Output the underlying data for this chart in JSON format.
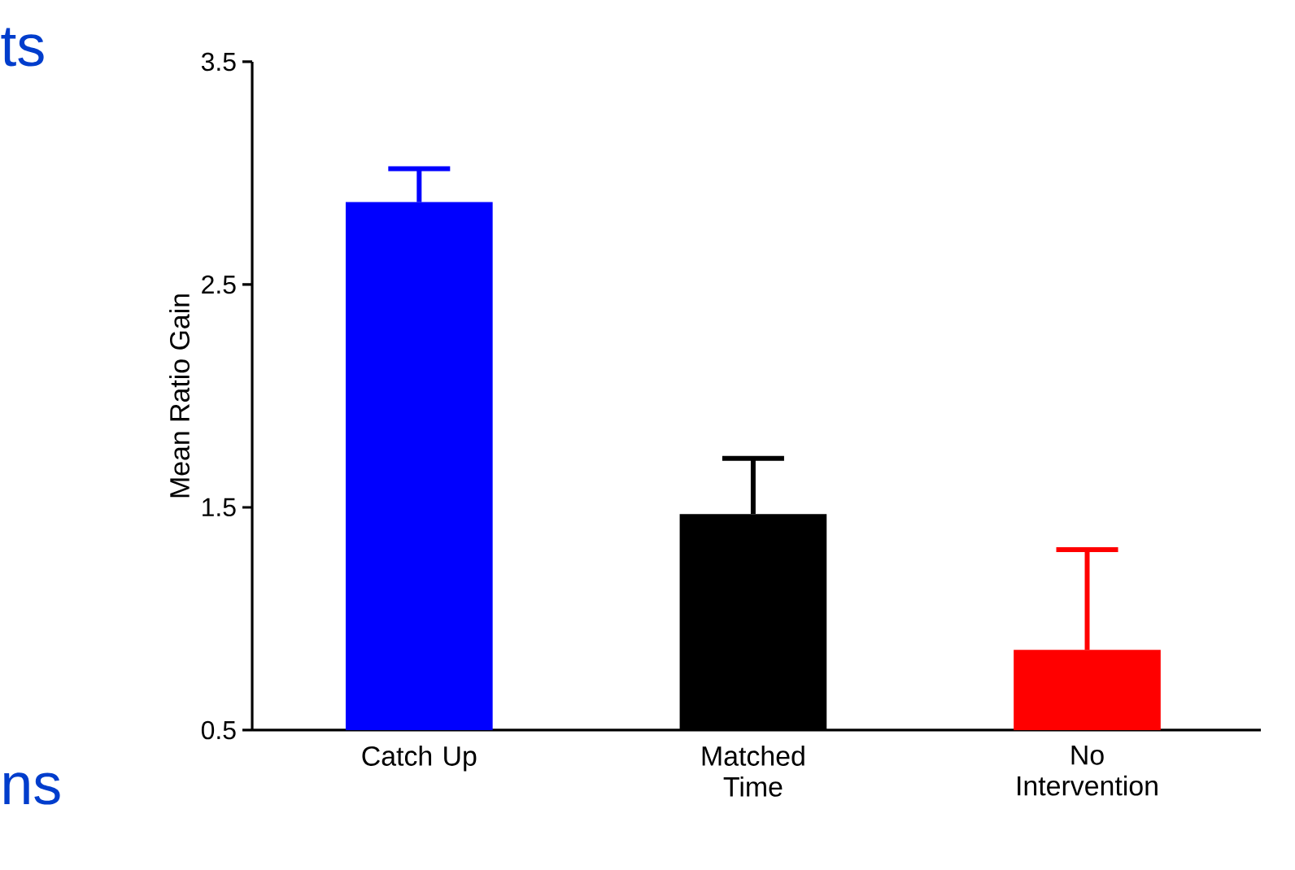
{
  "chart_data": {
    "type": "bar",
    "ylabel": "Mean Ratio Gain",
    "categories": [
      "Catch Up",
      "Matched Time",
      "No Intervention"
    ],
    "values": [
      2.87,
      1.47,
      0.86
    ],
    "colors": [
      "#0000ff",
      "#000000",
      "#ff0000"
    ],
    "errors": [
      [
        2.87,
        3.02
      ],
      [
        1.47,
        1.72
      ],
      [
        0.86,
        1.31
      ]
    ],
    "ylim": [
      0.5,
      3.5
    ],
    "yticks": [
      0.5,
      1.5,
      2.5,
      3.5
    ],
    "annotations": [
      "ts",
      "ns"
    ]
  }
}
